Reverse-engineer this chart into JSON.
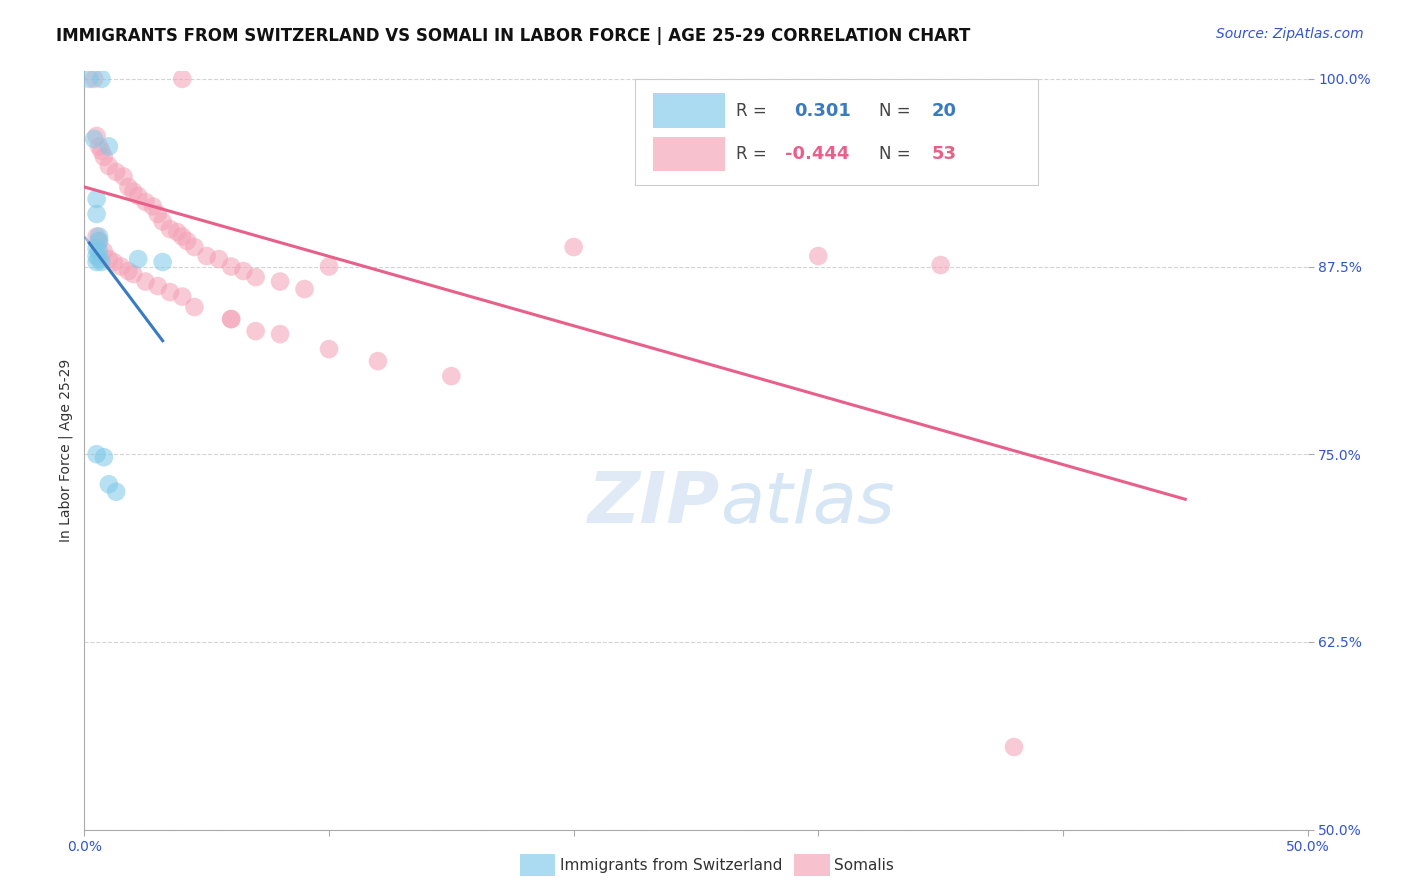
{
  "title": "IMMIGRANTS FROM SWITZERLAND VS SOMALI IN LABOR FORCE | AGE 25-29 CORRELATION CHART",
  "source": "Source: ZipAtlas.com",
  "ylabel": "In Labor Force | Age 25-29",
  "xlim": [
    0.0,
    0.5
  ],
  "ylim": [
    0.5,
    1.005
  ],
  "xticks": [
    0.0,
    0.1,
    0.2,
    0.3,
    0.4,
    0.5
  ],
  "xticklabels": [
    "0.0%",
    "",
    "",
    "",
    "",
    "50.0%"
  ],
  "yticks": [
    0.5,
    0.625,
    0.75,
    0.875,
    1.0
  ],
  "yticklabels": [
    "50.0%",
    "62.5%",
    "75.0%",
    "87.5%",
    "100.0%"
  ],
  "swiss_R": 0.301,
  "swiss_N": 20,
  "somali_R": -0.444,
  "somali_N": 53,
  "swiss_color": "#7dc8e8",
  "somali_color": "#f4a0b5",
  "swiss_line_color": "#3a7abf",
  "somali_line_color": "#e8608a",
  "watermark_zip": "ZIP",
  "watermark_atlas": "atlas",
  "swiss_x": [
    0.002,
    0.007,
    0.004,
    0.01,
    0.005,
    0.005,
    0.006,
    0.006,
    0.005,
    0.006,
    0.005,
    0.006,
    0.005,
    0.007,
    0.022,
    0.032,
    0.005,
    0.008,
    0.01,
    0.013
  ],
  "swiss_y": [
    1.0,
    1.0,
    0.96,
    0.955,
    0.92,
    0.91,
    0.895,
    0.892,
    0.887,
    0.885,
    0.882,
    0.88,
    0.878,
    0.878,
    0.88,
    0.878,
    0.75,
    0.748,
    0.73,
    0.725
  ],
  "somali_x": [
    0.004,
    0.04,
    0.005,
    0.006,
    0.007,
    0.008,
    0.01,
    0.013,
    0.016,
    0.018,
    0.02,
    0.022,
    0.025,
    0.028,
    0.03,
    0.032,
    0.035,
    0.038,
    0.04,
    0.042,
    0.045,
    0.05,
    0.055,
    0.06,
    0.065,
    0.07,
    0.08,
    0.09,
    0.005,
    0.006,
    0.008,
    0.01,
    0.012,
    0.015,
    0.018,
    0.02,
    0.025,
    0.03,
    0.035,
    0.04,
    0.045,
    0.06,
    0.07,
    0.08,
    0.1,
    0.12,
    0.15,
    0.2,
    0.35,
    0.3,
    0.06,
    0.1,
    0.38
  ],
  "somali_y": [
    1.0,
    1.0,
    0.962,
    0.955,
    0.952,
    0.948,
    0.942,
    0.938,
    0.935,
    0.928,
    0.925,
    0.922,
    0.918,
    0.915,
    0.91,
    0.905,
    0.9,
    0.898,
    0.895,
    0.892,
    0.888,
    0.882,
    0.88,
    0.875,
    0.872,
    0.868,
    0.865,
    0.86,
    0.895,
    0.892,
    0.885,
    0.88,
    0.878,
    0.875,
    0.872,
    0.87,
    0.865,
    0.862,
    0.858,
    0.855,
    0.848,
    0.84,
    0.832,
    0.83,
    0.82,
    0.812,
    0.802,
    0.888,
    0.876,
    0.882,
    0.84,
    0.875,
    0.555
  ],
  "grid_color": "#d0d0d0",
  "background_color": "#ffffff",
  "title_fontsize": 12,
  "axis_label_fontsize": 10,
  "tick_fontsize": 10,
  "source_fontsize": 10
}
